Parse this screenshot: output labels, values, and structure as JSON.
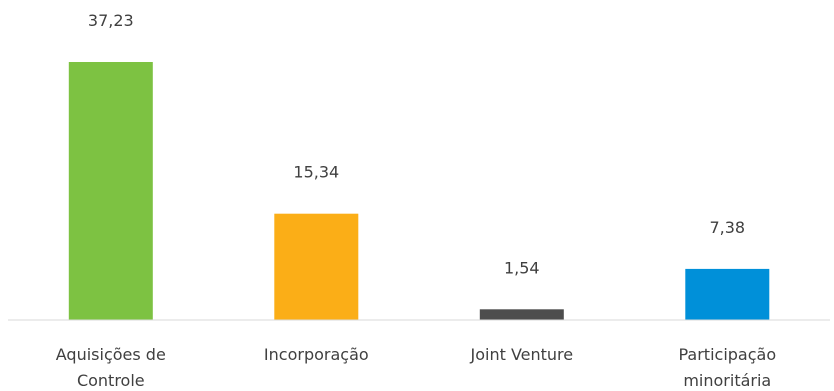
{
  "chart_data": {
    "type": "bar",
    "categories": [
      [
        "Aquisições de",
        "Controle"
      ],
      [
        "Incorporação"
      ],
      [
        "Joint Venture"
      ],
      [
        "Participação",
        "minoritária"
      ]
    ],
    "values": [
      37.23,
      15.34,
      1.54,
      7.38
    ],
    "value_labels": [
      "37,23",
      "15,34",
      "1,54",
      "7,38"
    ],
    "colors": [
      "#7DC242",
      "#FBAE17",
      "#4D4D4D",
      "#0090D9"
    ],
    "title": "",
    "xlabel": "",
    "ylabel": "",
    "ylim": [
      0,
      37.23
    ],
    "grid": false,
    "legend": "none",
    "axis_color": "#D9D9D9"
  }
}
